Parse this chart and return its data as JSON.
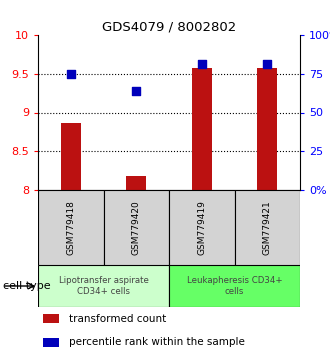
{
  "title": "GDS4079 / 8002802",
  "samples": [
    "GSM779418",
    "GSM779420",
    "GSM779419",
    "GSM779421"
  ],
  "red_values": [
    8.87,
    8.18,
    9.58,
    9.58
  ],
  "blue_values": [
    9.5,
    9.28,
    9.62,
    9.62
  ],
  "ylim_left": [
    8.0,
    10.0
  ],
  "yticks_left": [
    8.0,
    8.5,
    9.0,
    9.5,
    10.0
  ],
  "ytick_labels_left": [
    "8",
    "8.5",
    "9",
    "9.5",
    "10"
  ],
  "ytick_labels_right": [
    "0%",
    "25",
    "50",
    "75",
    "100%"
  ],
  "cell_types": [
    {
      "label": "Lipotransfer aspirate\nCD34+ cells",
      "color": "#ccffcc",
      "start": 0,
      "end": 2
    },
    {
      "label": "Leukapheresis CD34+\ncells",
      "color": "#66ff66",
      "start": 2,
      "end": 4
    }
  ],
  "cell_type_label": "cell type",
  "legend_red_label": "transformed count",
  "legend_blue_label": "percentile rank within the sample",
  "bar_color": "#bb1111",
  "dot_color": "#0000bb",
  "bar_width": 0.3,
  "dot_size": 40,
  "grid_color": "#000000"
}
